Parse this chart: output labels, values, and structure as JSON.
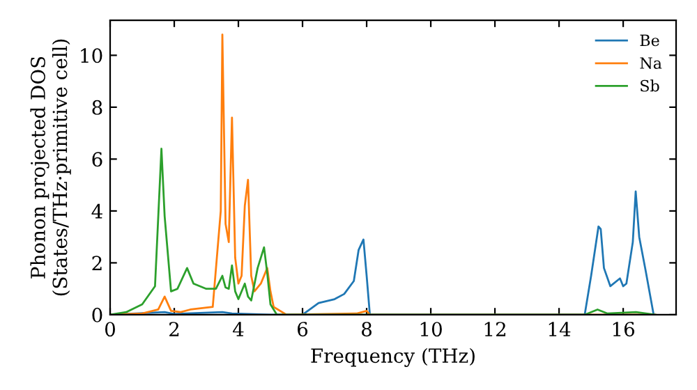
{
  "chart_data": {
    "type": "line",
    "xlabel": "Frequency (THz)",
    "ylabel": "Phonon projected DOS\n(States/THz·primitive cell)",
    "xlim": [
      0,
      17.65
    ],
    "ylim": [
      0,
      11.35
    ],
    "xticks": [
      0,
      2,
      4,
      6,
      8,
      10,
      12,
      14,
      16
    ],
    "yticks": [
      0,
      2,
      4,
      6,
      8,
      10
    ],
    "legend": "top right",
    "grid": false,
    "series": [
      {
        "name": "Be",
        "color": "#1f77b4",
        "x": [
          0,
          1.7,
          2.0,
          3.5,
          3.8,
          5.0,
          6.0,
          6.5,
          7.0,
          7.3,
          7.6,
          7.75,
          7.9,
          8.0,
          8.1,
          14.8,
          15.0,
          15.23,
          15.3,
          15.4,
          15.6,
          15.9,
          16.0,
          16.1,
          16.3,
          16.39,
          16.5,
          16.7,
          16.95
        ],
        "values": [
          0,
          0.1,
          0.03,
          0.1,
          0.05,
          0,
          0,
          0.45,
          0.6,
          0.8,
          1.3,
          2.5,
          2.9,
          1.5,
          0,
          0,
          1.5,
          3.4,
          3.3,
          1.8,
          1.1,
          1.4,
          1.1,
          1.2,
          2.8,
          4.75,
          3.0,
          1.7,
          0
        ]
      },
      {
        "name": "Na",
        "color": "#ff7f0e",
        "x": [
          0,
          1.0,
          1.5,
          1.7,
          1.9,
          2.2,
          2.5,
          3.2,
          3.45,
          3.5,
          3.6,
          3.7,
          3.8,
          3.9,
          4.0,
          4.1,
          4.2,
          4.3,
          4.4,
          4.5,
          4.7,
          4.9,
          5.0,
          5.1,
          5.5,
          7.7,
          8.0,
          8.1,
          17.0
        ],
        "values": [
          0,
          0.05,
          0.2,
          0.7,
          0.15,
          0.1,
          0.2,
          0.3,
          4.0,
          10.8,
          3.5,
          2.8,
          7.6,
          2.2,
          1.2,
          1.5,
          4.2,
          5.2,
          1.5,
          0.9,
          1.2,
          1.8,
          0.9,
          0.3,
          0,
          0.05,
          0.15,
          0,
          0
        ]
      },
      {
        "name": "Sb",
        "color": "#2ca02c",
        "x": [
          0,
          0.5,
          1.0,
          1.4,
          1.6,
          1.7,
          1.9,
          2.1,
          2.4,
          2.6,
          3.0,
          3.3,
          3.5,
          3.6,
          3.7,
          3.8,
          3.9,
          4.0,
          4.2,
          4.3,
          4.4,
          4.6,
          4.8,
          4.9,
          5.0,
          5.2,
          14.8,
          15.2,
          15.5,
          16.4,
          17.0
        ],
        "values": [
          0,
          0.1,
          0.4,
          1.1,
          6.4,
          3.8,
          0.9,
          1.0,
          1.8,
          1.2,
          1.0,
          1.0,
          1.5,
          1.05,
          1.0,
          1.9,
          0.9,
          0.6,
          1.2,
          0.7,
          0.55,
          1.8,
          2.6,
          1.6,
          0.4,
          0,
          0,
          0.2,
          0.05,
          0.1,
          0
        ]
      }
    ]
  }
}
